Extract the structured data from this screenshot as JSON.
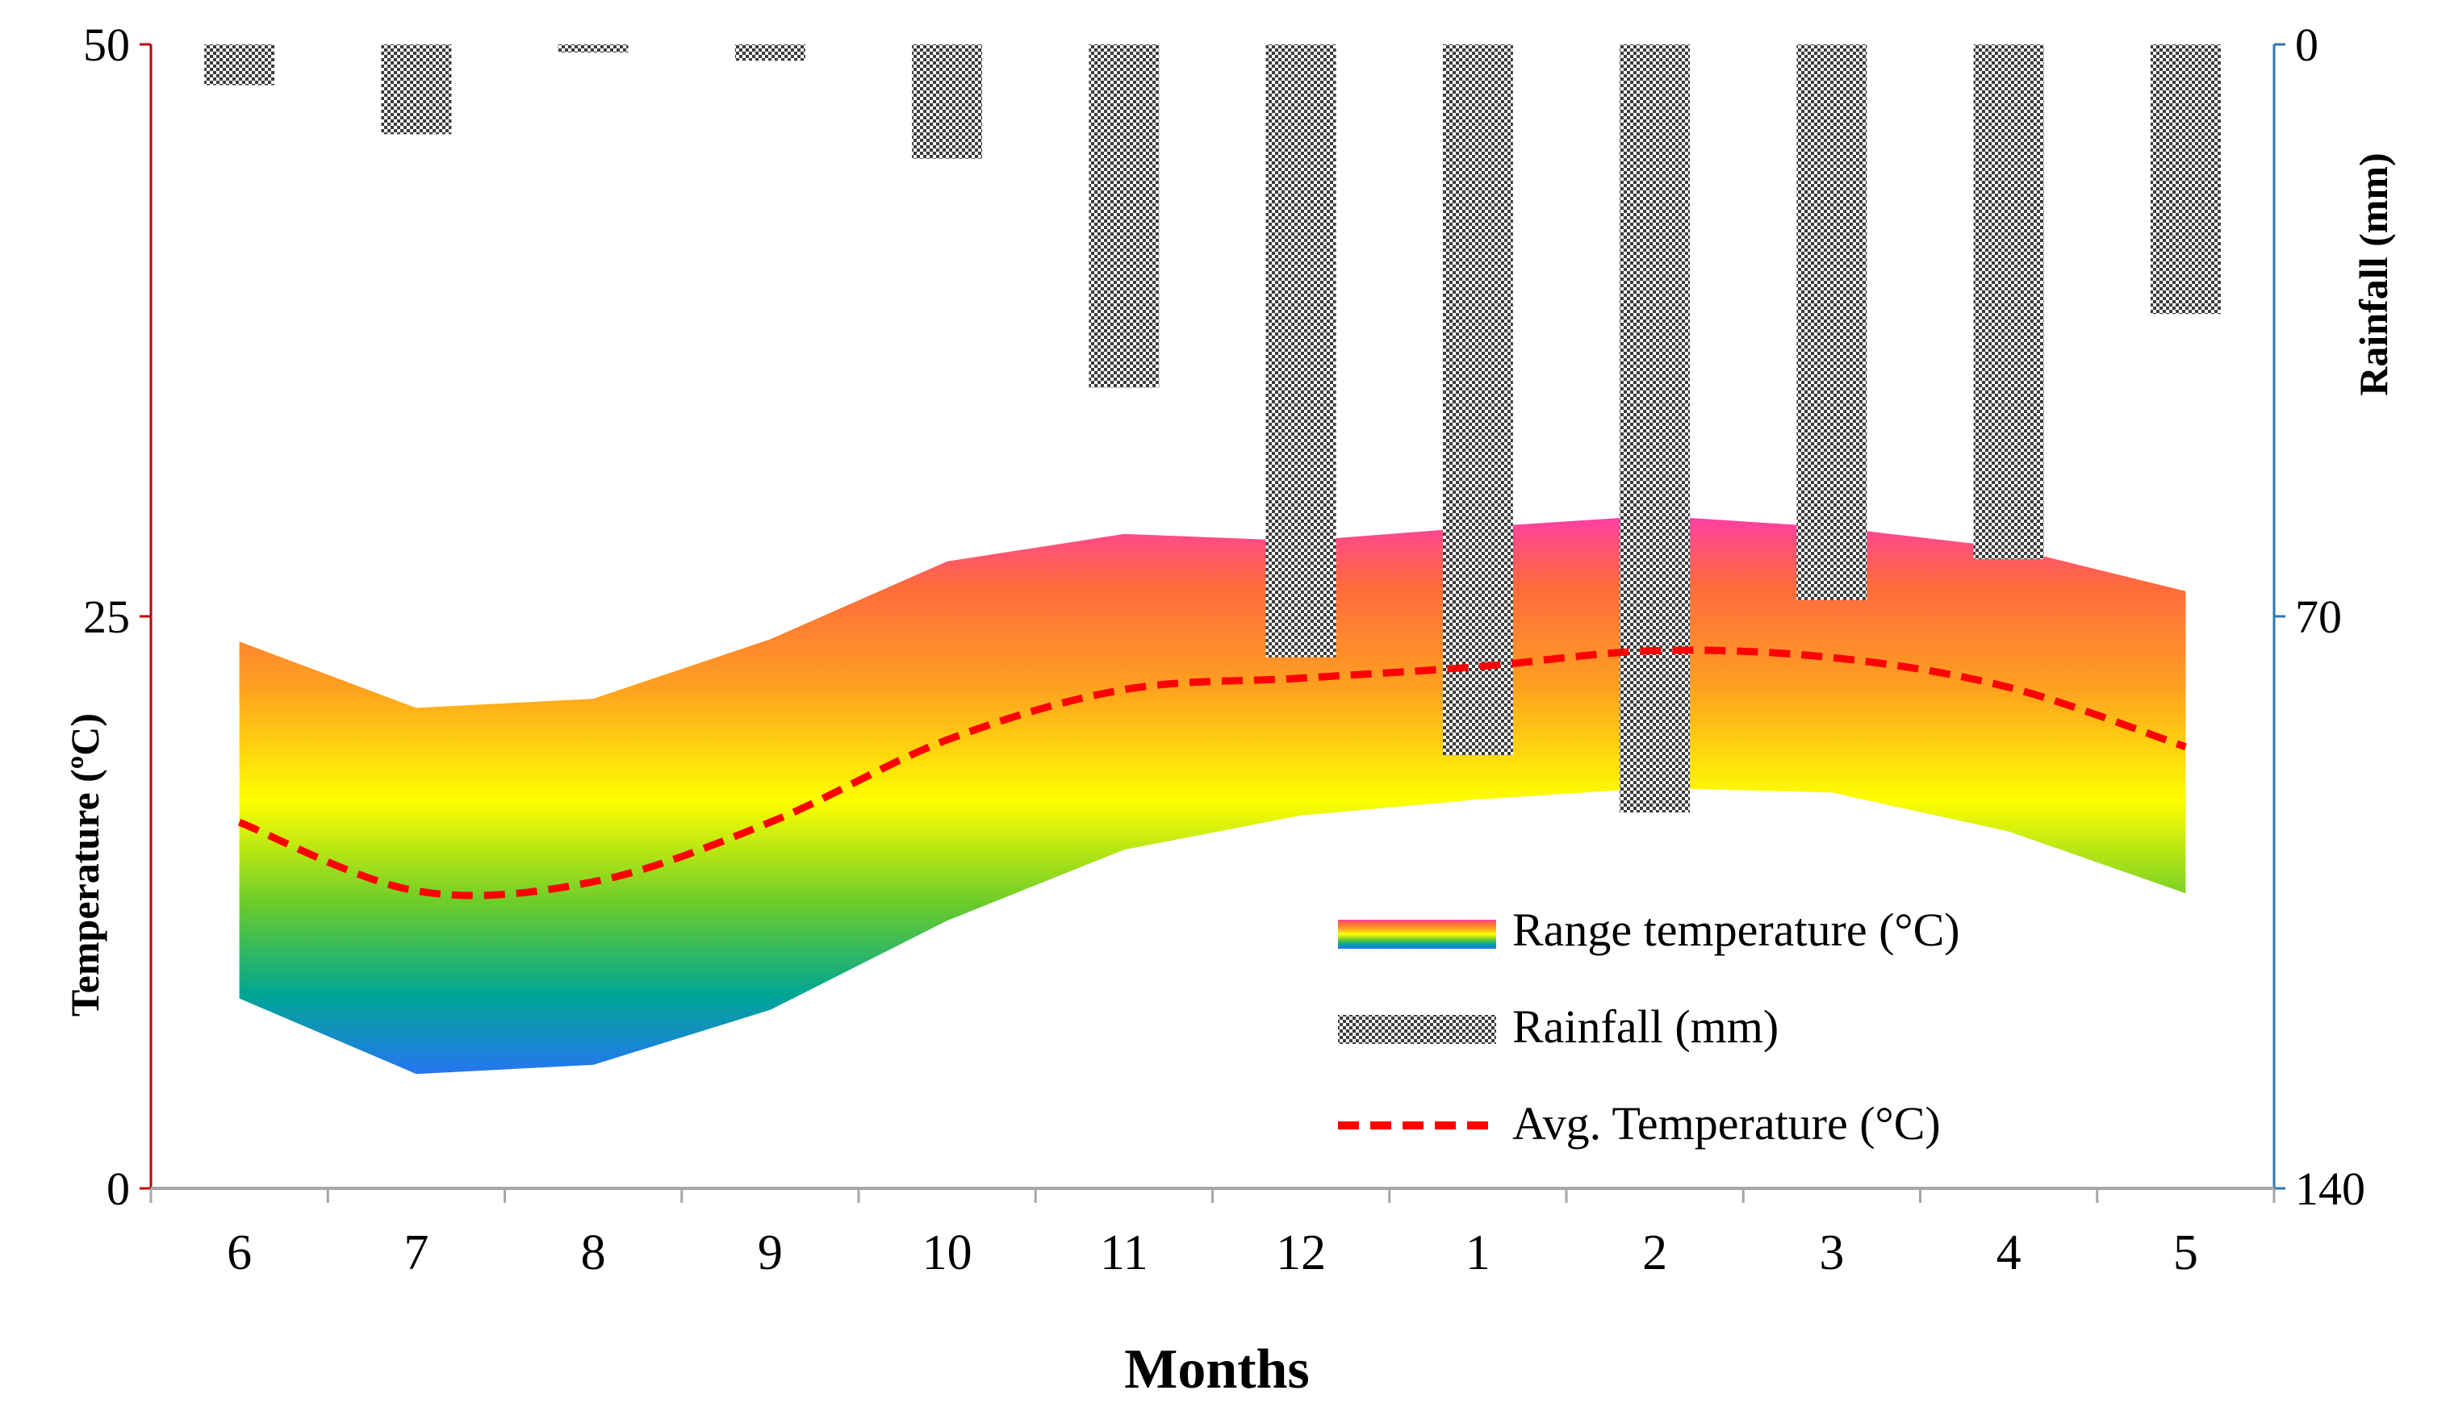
{
  "chart_data": {
    "type": "area",
    "title": "",
    "categories": [
      "6",
      "7",
      "8",
      "9",
      "10",
      "11",
      "12",
      "1",
      "2",
      "3",
      "4",
      "5"
    ],
    "xlabel": "Months",
    "ylabel": "Temperature (ºC)",
    "y2label": "Rainfall (mm)",
    "ylim": [
      0,
      50
    ],
    "y2lim": [
      0,
      140
    ],
    "y2_inverted": true,
    "yticks": [
      "0",
      "25",
      "50"
    ],
    "y2ticks": [
      "0",
      "70",
      "140"
    ],
    "series": [
      {
        "name": "Range temperature (°C)",
        "kind": "range",
        "min": [
          8.3,
          5.0,
          5.4,
          7.8,
          11.7,
          14.8,
          16.3,
          17.0,
          17.5,
          17.3,
          15.6,
          12.9
        ],
        "max": [
          23.9,
          21.0,
          21.4,
          24.0,
          27.4,
          28.6,
          28.3,
          28.9,
          29.4,
          28.9,
          28.0,
          26.1
        ]
      },
      {
        "name": "Rainfall (mm)",
        "kind": "bar",
        "axis": "right",
        "values": [
          5,
          11,
          1,
          2,
          14,
          42,
          75,
          87,
          94,
          68,
          63,
          33
        ]
      },
      {
        "name": "Avg. Temperature (°C)",
        "kind": "line",
        "values": [
          16.0,
          13.0,
          13.4,
          16.0,
          19.6,
          21.8,
          22.3,
          22.8,
          23.5,
          23.2,
          21.9,
          19.3
        ]
      }
    ],
    "legend": [
      "Range temperature (°C)",
      "Rainfall (mm)",
      "Avg. Temperature (°C)"
    ],
    "legend_position": "bottom-right",
    "grid": false
  },
  "colors": {
    "left_axis": "#c00000",
    "right_axis": "#2e75b6",
    "bottom_axis": "#a6a6a6",
    "avg_line": "#ff0000",
    "bar_dark": "#3c3c3c",
    "gradient": [
      "#ff3ea5",
      "#ff6a3d",
      "#ffa020",
      "#ffff00",
      "#6ccc2a",
      "#00a693",
      "#2b6fff"
    ]
  }
}
